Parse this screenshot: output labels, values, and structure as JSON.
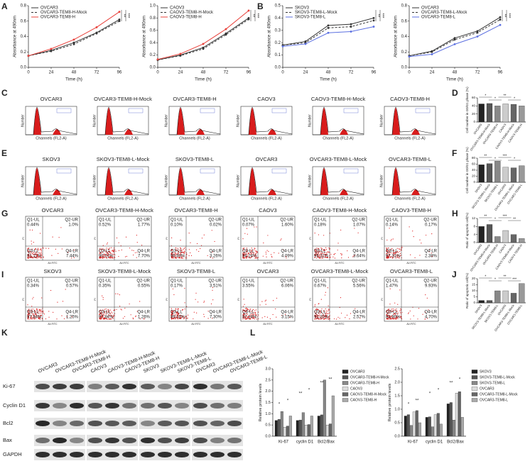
{
  "panel_labels": [
    "A",
    "B",
    "C",
    "D",
    "E",
    "F",
    "G",
    "H",
    "I",
    "J",
    "K",
    "L"
  ],
  "chart_data": [
    {
      "type": "line",
      "xlabel": "Time (h)",
      "ylabel": "Absorbance at 490nm",
      "x": [
        0,
        24,
        48,
        72,
        96
      ],
      "xlim": [
        0,
        96
      ],
      "xticks": [
        0,
        24,
        48,
        72,
        96
      ],
      "ylim": [
        0,
        0.8
      ],
      "yticks": [
        {
          "value": 0,
          "label": "0.0"
        },
        0.2,
        0.4,
        0.6,
        0.8
      ],
      "annotations": [
        "**",
        "***"
      ],
      "series": [
        {
          "name": "OVCAR3",
          "color": "#333333",
          "style": "solid",
          "values": [
            0.15,
            0.22,
            0.32,
            0.45,
            0.62
          ]
        },
        {
          "name": "OVCAR3-TEM8-H-Mock",
          "color": "#333333",
          "style": "dashed",
          "values": [
            0.15,
            0.21,
            0.3,
            0.44,
            0.6
          ]
        },
        {
          "name": "OVCAR3-TEM8-H",
          "color": "#e8413b",
          "style": "solid",
          "values": [
            0.15,
            0.24,
            0.36,
            0.52,
            0.72
          ]
        }
      ]
    },
    {
      "type": "line",
      "xlabel": "Time (h)",
      "ylabel": "Absorbance at 490nm",
      "x": [
        0,
        24,
        48,
        72,
        96
      ],
      "xlim": [
        0,
        96
      ],
      "xticks": [
        0,
        24,
        48,
        72,
        96
      ],
      "ylim": [
        0,
        1
      ],
      "yticks": [
        {
          "value": 0,
          "label": "0.0"
        },
        0.2,
        0.4,
        0.6,
        0.8,
        {
          "value": 1,
          "label": "1.0"
        }
      ],
      "annotations": [
        "**",
        "***"
      ],
      "series": [
        {
          "name": "CAOV3",
          "color": "#333333",
          "style": "solid",
          "values": [
            0.12,
            0.2,
            0.32,
            0.55,
            0.8
          ]
        },
        {
          "name": "CAOV3-TEM8-H-Mock",
          "color": "#333333",
          "style": "dashed",
          "values": [
            0.12,
            0.19,
            0.3,
            0.53,
            0.78
          ]
        },
        {
          "name": "CAOV3-TEM8-H",
          "color": "#e8413b",
          "style": "solid",
          "values": [
            0.13,
            0.22,
            0.38,
            0.62,
            0.92
          ]
        }
      ]
    },
    {
      "type": "line",
      "xlabel": "Time (h)",
      "ylabel": "Absorbance at 490nm",
      "x": [
        0,
        24,
        48,
        72,
        96
      ],
      "xlim": [
        0,
        96
      ],
      "xticks": [
        0,
        24,
        48,
        72,
        96
      ],
      "ylim": [
        0,
        0.5
      ],
      "yticks": [
        {
          "value": 0,
          "label": "0.0"
        },
        0.1,
        0.2,
        0.3,
        0.4,
        0.5
      ],
      "annotations": [
        "**",
        "***"
      ],
      "series": [
        {
          "name": "SKOV3",
          "color": "#333333",
          "style": "solid",
          "values": [
            0.18,
            0.21,
            0.34,
            0.35,
            0.4
          ]
        },
        {
          "name": "SKOV3-TEM8-L-Mock",
          "color": "#333333",
          "style": "dashed",
          "values": [
            0.18,
            0.2,
            0.32,
            0.33,
            0.38
          ]
        },
        {
          "name": "SKOV3-TEM8-L",
          "color": "#5b6fe0",
          "style": "solid",
          "values": [
            0.17,
            0.19,
            0.28,
            0.29,
            0.33
          ]
        }
      ]
    },
    {
      "type": "line",
      "xlabel": "Time (h)",
      "ylabel": "Absorbance at 490nm",
      "x": [
        0,
        24,
        48,
        72,
        96
      ],
      "xlim": [
        0,
        96
      ],
      "xticks": [
        0,
        24,
        48,
        72,
        96
      ],
      "ylim": [
        0,
        0.8
      ],
      "yticks": [
        {
          "value": 0,
          "label": "0.0"
        },
        0.2,
        0.4,
        0.6,
        0.8
      ],
      "annotations": [
        "**",
        "***"
      ],
      "series": [
        {
          "name": "OVCAR3",
          "color": "#333333",
          "style": "solid",
          "values": [
            0.15,
            0.21,
            0.38,
            0.47,
            0.65
          ]
        },
        {
          "name": "OVCAR3-TEM8-L-Mock",
          "color": "#333333",
          "style": "dashed",
          "values": [
            0.15,
            0.2,
            0.36,
            0.45,
            0.62
          ]
        },
        {
          "name": "OVCAR3-TEM8-L",
          "color": "#5b6fe0",
          "style": "solid",
          "values": [
            0.14,
            0.17,
            0.3,
            0.4,
            0.55
          ]
        }
      ]
    },
    {
      "type": "bar",
      "ylabel": "Cell number in G0/G1 phase (%)",
      "categories": [
        "OVCAR3",
        "OVCAR3-TEM8-H-Mock",
        "OVCAR3-TEM8-H",
        "CAOV3",
        "CAOV3-TEM8-H-Mock",
        "CAOV3-TEM8-H"
      ],
      "values": [
        45,
        46,
        40,
        45,
        44,
        40
      ],
      "colors": [
        "#222222",
        "#555555",
        "#888888",
        "#cccccc",
        "#666666",
        "#999999"
      ],
      "ylim": [
        0,
        60
      ],
      "yticks": [
        0,
        20,
        40,
        60
      ],
      "annotations": [
        "*",
        "*",
        "**",
        "*"
      ]
    },
    {
      "type": "bar",
      "ylabel": "Cell number in G0/G1 phase (%)",
      "categories": [
        "SKOV3",
        "SKOV3-TEM8-L-Mock",
        "SKOV3-TEM8-L",
        "OVCAR3",
        "OVCAR3-TEM8-L-Mock",
        "OVCAR3-TEM8-L"
      ],
      "values": [
        58,
        62,
        70,
        50,
        48,
        55
      ],
      "colors": [
        "#222222",
        "#555555",
        "#888888",
        "#cccccc",
        "#666666",
        "#999999"
      ],
      "ylim": [
        0,
        80
      ],
      "yticks": [
        0,
        20,
        40,
        60,
        80
      ],
      "annotations": [
        "**",
        "*",
        "***",
        "*"
      ]
    },
    {
      "type": "bar",
      "ylabel": "Ratio of apoptotic cell(%)",
      "categories": [
        "OVCAR3",
        "OVCAR3-TEM8-H-Mock",
        "OVCAR3-TEM8-H",
        "CAOV3",
        "CAOV3-TEM8-H-Mock",
        "CAOV3-TEM8-H"
      ],
      "values": [
        8,
        9,
        3,
        6,
        4,
        2
      ],
      "colors": [
        "#222222",
        "#555555",
        "#888888",
        "#cccccc",
        "#666666",
        "#999999"
      ],
      "ylim": [
        0,
        12
      ],
      "yticks": [
        0,
        4,
        8,
        12
      ],
      "annotations": [
        "**",
        "*",
        "***",
        "**"
      ]
    },
    {
      "type": "bar",
      "ylabel": "Ratio of apoptotic cell(%)",
      "categories": [
        "SKOV3",
        "SKOV3-TEM8-L-Mock",
        "SKOV3-TEM8-L",
        "OVCAR3",
        "OVCAR3-TEM8-L-Mock",
        "OVCAR3-TEM8-L"
      ],
      "values": [
        2,
        2,
        10,
        10,
        8,
        16
      ],
      "colors": [
        "#222222",
        "#555555",
        "#888888",
        "#cccccc",
        "#666666",
        "#999999"
      ],
      "ylim": [
        0,
        20
      ],
      "yticks": [
        0,
        5,
        10,
        15,
        20
      ],
      "annotations": [
        "*",
        "*",
        "**",
        "***"
      ]
    },
    {
      "type": "grouped",
      "ylabel": "Relative protein levels",
      "categories": [
        "Ki-67",
        "cyclin D1",
        "Bcl2/Bax"
      ],
      "ylim": [
        0,
        3
      ],
      "yticks": [
        {
          "value": 0,
          "label": "0.0"
        },
        0.5,
        {
          "value": 1,
          "label": "1.0"
        },
        1.5,
        {
          "value": 2,
          "label": "2.0"
        },
        2.5,
        {
          "value": 3,
          "label": "3.0"
        }
      ],
      "annotations": [
        "*",
        "*",
        "**",
        "*",
        "**",
        "**"
      ],
      "series": [
        {
          "name": "OVCAR3",
          "color": "#222222",
          "values": [
            0.7,
            0.7,
            0.9
          ]
        },
        {
          "name": "OVCAR3-TEM8-H-Mock",
          "color": "#555555",
          "values": [
            0.75,
            0.72,
            0.95
          ]
        },
        {
          "name": "OVCAR3-TEM8-H",
          "color": "#888888",
          "values": [
            1.1,
            1.05,
            2.5
          ]
        },
        {
          "name": "CAOV3",
          "color": "#dddddd",
          "values": [
            0.4,
            0.5,
            0.5
          ]
        },
        {
          "name": "CAOV3-TEM8-H-Mock",
          "color": "#666666",
          "values": [
            0.45,
            0.52,
            0.55
          ]
        },
        {
          "name": "CAOV3-TEM8-H",
          "color": "#aaaaaa",
          "values": [
            0.9,
            0.9,
            1.8
          ]
        }
      ]
    },
    {
      "type": "grouped",
      "ylabel": "Relative protein levels",
      "categories": [
        "Ki-67",
        "cyclin D1",
        "Bcl2/Bax"
      ],
      "ylim": [
        0,
        2.5
      ],
      "yticks": [
        {
          "value": 0,
          "label": "0.0"
        },
        0.5,
        {
          "value": 1,
          "label": "1.0"
        },
        1.5,
        {
          "value": 2,
          "label": "2.0"
        },
        2.5
      ],
      "annotations": [
        "*",
        "**",
        "*",
        "*",
        "**",
        "*"
      ],
      "series": [
        {
          "name": "SKOV3",
          "color": "#222222",
          "values": [
            0.75,
            0.7,
            1.2
          ]
        },
        {
          "name": "SKOV3-TEM8-L-Mock",
          "color": "#555555",
          "values": [
            0.8,
            0.72,
            1.25
          ]
        },
        {
          "name": "SKOV3-TEM8-L",
          "color": "#888888",
          "values": [
            0.4,
            0.35,
            0.6
          ]
        },
        {
          "name": "OVCAR3",
          "color": "#dddddd",
          "values": [
            0.9,
            0.8,
            1.6
          ]
        },
        {
          "name": "OVCAR3-TEM8-L-Mock",
          "color": "#666666",
          "values": [
            0.95,
            0.85,
            1.65
          ]
        },
        {
          "name": "OVCAR3-TEM8-L",
          "color": "#aaaaaa",
          "values": [
            0.5,
            0.45,
            0.7
          ]
        }
      ]
    }
  ],
  "cell_cycle": [
    {
      "titles": [
        "OVCAR3",
        "OVCAR3-TEM8-H-Mock",
        "OVCAR3-TEM8-H",
        "CAOV3",
        "CAOV3-TEM8-H-Mock",
        "CAOV3-TEM8-H"
      ],
      "ylabel": "Number",
      "xlabel": "Channels (FL2-A)"
    },
    {
      "titles": [
        "SKOV3",
        "SKOV3-TEM8-L-Mock",
        "SKOV3-TEM8-L",
        "OVCAR3",
        "OVCAR3-TEM8-L-Mock",
        "OVCAR3-TEM8-L"
      ],
      "ylabel": "Number",
      "xlabel": "Channels (FL2-A)"
    }
  ],
  "apoptosis": {
    "quadrant_names": [
      "Q1-UL",
      "Q2-UR",
      "Q3-LL",
      "Q4-LR"
    ],
    "xlabel": "AV-FITC",
    "ylabel": "PI",
    "rows": [
      {
        "titles": [
          "OVCAR3",
          "OVCAR3-TEM8-H-Mock",
          "OVCAR3-TEM8-H",
          "CAOV3",
          "CAOV3-TEM8-H-Mock",
          "CAOV3-TEM8-H"
        ],
        "values": [
          [
            "0.44%",
            "1.0%",
            "91.11%",
            "7.44%"
          ],
          [
            "0.52%",
            "1.77%",
            "90.01%",
            "7.70%"
          ],
          [
            "0.10%",
            "0.02%",
            "96.60%",
            "3.26%"
          ],
          [
            "0.07%",
            "1.60%",
            "94.24%",
            "4.09%"
          ],
          [
            "0.18%",
            "1.07%",
            "95.11%",
            "3.64%"
          ],
          [
            "0.14%",
            "0.17%",
            "97.31%",
            "2.38%"
          ]
        ]
      },
      {
        "titles": [
          "SKOV3",
          "SKOV3-TEM8-L-Mock",
          "SKOV3-TEM8-L",
          "OVCAR3",
          "OVCAR3-TEM8-L-Mock",
          "OVCAR3-TEM8-L"
        ],
        "values": [
          [
            "0.34%",
            "0.57%",
            "97.84%",
            "1.25%"
          ],
          [
            "0.35%",
            "0.55%",
            "97.84%",
            "1.26%"
          ],
          [
            "0.17%",
            "3.51%",
            "89.02%",
            "7.30%"
          ],
          [
            "3.55%",
            "6.06%",
            "87.24%",
            "3.15%"
          ],
          [
            "0.67%",
            "5.56%",
            "91.20%",
            "2.57%"
          ],
          [
            "1.47%",
            "9.93%",
            "83.90%",
            "4.70%"
          ]
        ]
      }
    ]
  },
  "western": {
    "columns": [
      "OVCAR3",
      "OVCAR3-TEM8-H-Mock",
      "OVCAR3-TEM8-H",
      "CAOV3",
      "CAOV3-TEM8-H-Mock",
      "CAOV3-TEM8-H",
      "SKOV3",
      "SKOV3-TEM8-L-Mock",
      "SKOV3-TEM8-L",
      "OVCAR3",
      "OVCAR3-TEM8-L-Mock",
      "OVCAR3-TEM8-L"
    ],
    "rows": [
      "Ki-67",
      "Cyclin D1",
      "Bcl2",
      "Bax",
      "GAPDH"
    ]
  }
}
